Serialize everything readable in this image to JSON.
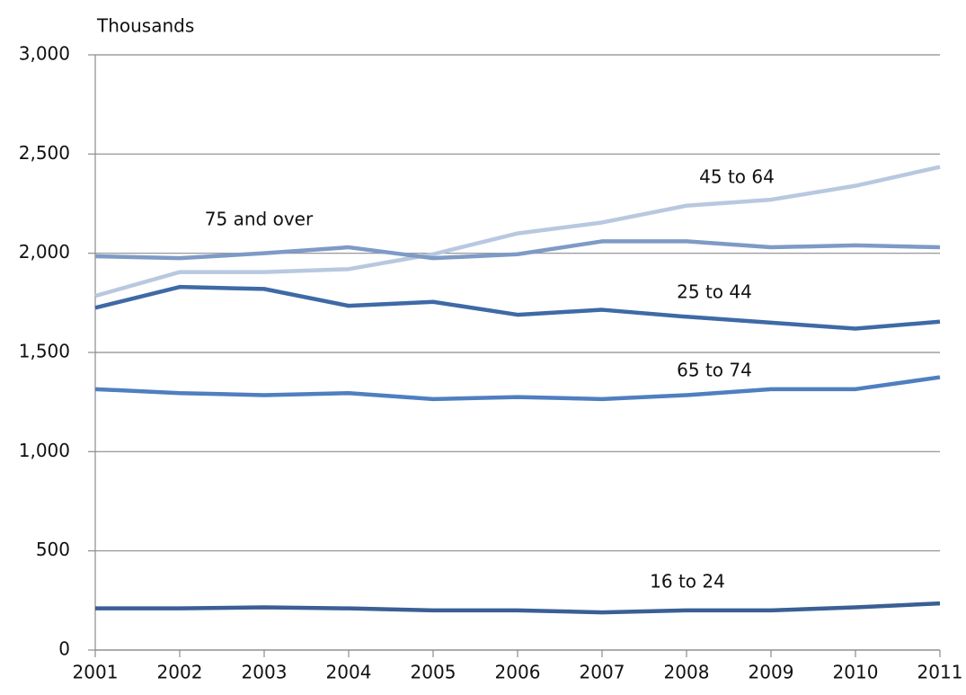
{
  "chart_data": {
    "type": "line",
    "y_label": "Thousands",
    "x": [
      2001,
      2002,
      2003,
      2004,
      2005,
      2006,
      2007,
      2008,
      2009,
      2010,
      2011
    ],
    "xlim": [
      2001,
      2011
    ],
    "xticks": [
      2001,
      2002,
      2003,
      2004,
      2005,
      2006,
      2007,
      2008,
      2009,
      2010,
      2011
    ],
    "ylim": [
      0,
      3000
    ],
    "yticks": [
      0,
      500,
      {
        "value": 1000,
        "label": "1,000"
      },
      {
        "value": 1500,
        "label": "1,500"
      },
      {
        "value": 2000,
        "label": "2,000"
      },
      {
        "value": 2500,
        "label": "2,500"
      },
      {
        "value": 3000,
        "label": "3,000"
      }
    ],
    "grid": true,
    "series": [
      {
        "name": "16 to 24",
        "color": "#3a5f94",
        "values": [
          210,
          210,
          215,
          210,
          200,
          200,
          190,
          200,
          200,
          215,
          235
        ]
      },
      {
        "name": "25 to 44",
        "color": "#3e6aa6",
        "values": [
          1725,
          1830,
          1820,
          1735,
          1755,
          1690,
          1715,
          1680,
          1650,
          1620,
          1655
        ]
      },
      {
        "name": "45 to 64",
        "color": "#b8c8e0",
        "values": [
          1785,
          1905,
          1905,
          1920,
          1995,
          2100,
          2155,
          2240,
          2270,
          2340,
          2435
        ]
      },
      {
        "name": "65 to 74",
        "color": "#4f7fc0",
        "values": [
          1315,
          1295,
          1285,
          1295,
          1265,
          1275,
          1265,
          1285,
          1315,
          1315,
          1375
        ]
      },
      {
        "name": "75 and over",
        "color": "#7e9ac6",
        "values": [
          1985,
          1975,
          2000,
          2030,
          1975,
          1995,
          2060,
          2060,
          2030,
          2040,
          2030
        ]
      }
    ]
  }
}
